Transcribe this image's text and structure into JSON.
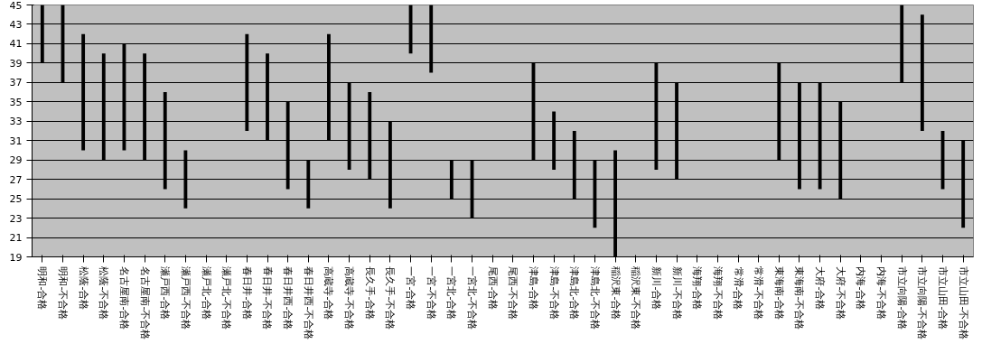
{
  "chart_data": {
    "type": "bar",
    "categories": [
      "明和-合格",
      "明和-不合格",
      "松蔭-合格",
      "松蔭-不合格",
      "名古屋南-合格",
      "名古屋南-不合格",
      "瀬戸西-合格",
      "瀬戸西-不合格",
      "瀬戸北-合格",
      "瀬戸北-不合格",
      "春日井-合格",
      "春日井-不合格",
      "春日井西-合格",
      "春日井西-不合格",
      "高蔵寺-合格",
      "高蔵寺-不合格",
      "長久手-合格",
      "長久手-不合格",
      "一宮-合格",
      "一宮-不合格",
      "一宮北-合格",
      "一宮北-不合格",
      "尾西-合格",
      "尾西-不合格",
      "津島-合格",
      "津島-不合格",
      "津島北-合格",
      "津島北-不合格",
      "稲沢東-合格",
      "稲沢東-不合格",
      "新川-合格",
      "新川-不合格",
      "海翔-合格",
      "海翔-不合格",
      "常滑-合格",
      "常滑-不合格",
      "東海南-合格",
      "東海南-不合格",
      "大府-合格",
      "大府-不合格",
      "内海-合格",
      "内海-不合格",
      "市立向陽-合格",
      "市立向陽-不合格",
      "市立山田-合格",
      "市立山田-不合格"
    ],
    "base": [
      39,
      37,
      30,
      29,
      30,
      29,
      26,
      24,
      null,
      null,
      32,
      31,
      26,
      24,
      31,
      28,
      27,
      24,
      40,
      38,
      25,
      23,
      null,
      null,
      29,
      28,
      25,
      22,
      19,
      null,
      28,
      27,
      null,
      null,
      null,
      null,
      29,
      26,
      26,
      25,
      null,
      null,
      37,
      32,
      26,
      22
    ],
    "values": [
      6,
      8,
      12,
      11,
      11,
      11,
      10,
      6,
      null,
      null,
      10,
      9,
      9,
      5,
      11,
      9,
      9,
      9,
      5,
      7,
      4,
      6,
      null,
      null,
      10,
      6,
      7,
      7,
      11,
      null,
      11,
      10,
      null,
      null,
      null,
      null,
      10,
      11,
      11,
      10,
      null,
      null,
      8,
      12,
      6,
      9
    ],
    "color": "#000000",
    "ylim": [
      19,
      45
    ],
    "yticks": [
      19,
      21,
      23,
      25,
      27,
      29,
      31,
      33,
      35,
      37,
      39,
      41,
      43,
      45
    ],
    "grid": "y"
  }
}
